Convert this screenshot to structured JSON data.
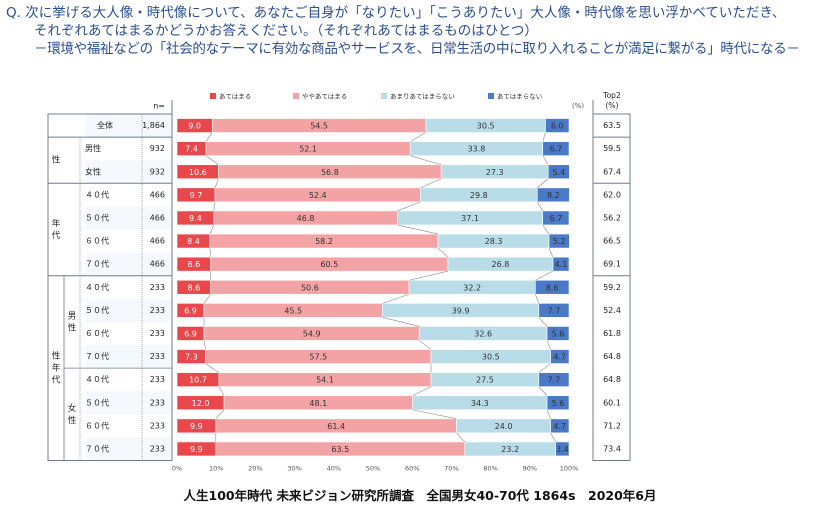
{
  "question": {
    "line1": "Q. 次に挙げる大人像・時代像について、あなたご自身が「なりたい」「こうありたい」大人像・時代像を思い浮かべていただき、",
    "line2": "それぞれあてはまるかどうかお答えください。（それぞれあてはまるものはひとつ）",
    "line3": "－環境や福祉などの「社会的なテーマに有効な商品やサービスを、日常生活の中に取り入れることが満足に繋がる」時代になる－"
  },
  "footer": "人生100年時代 未来ビジョン研究所調査　全国男女40-70代 1864s　2020年6月",
  "colors": {
    "s1": "#e8474c",
    "s2": "#f4a3a5",
    "s3": "#b8dde9",
    "s4": "#4a79c7",
    "frame": "#6e7c8c",
    "rowBand": "#e3ebf5"
  },
  "chart_data": {
    "type": "bar",
    "stacked": true,
    "orientation": "horizontal",
    "n_label": "n=",
    "unit_label": "(%)",
    "top2_label": [
      "Top2",
      "(%)"
    ],
    "group_labels": [
      "性",
      "年代",
      "性年代"
    ],
    "subgroup_labels": [
      "男性",
      "女性"
    ],
    "series": [
      {
        "name": "あてはまる",
        "color": "#e8474c"
      },
      {
        "name": "ややあてはまる",
        "color": "#f4a3a5"
      },
      {
        "name": "あまりあてはまらない",
        "color": "#b8dde9"
      },
      {
        "name": "あてはまらない",
        "color": "#4a79c7"
      }
    ],
    "categories": [
      "全体",
      "男性",
      "女性",
      "４０代",
      "５０代",
      "６０代",
      "７０代",
      "４０代",
      "５０代",
      "６０代",
      "７０代",
      "４０代",
      "５０代",
      "６０代",
      "７０代"
    ],
    "n": [
      "1,864",
      "932",
      "932",
      "466",
      "466",
      "466",
      "466",
      "233",
      "233",
      "233",
      "233",
      "233",
      "233",
      "233",
      "233"
    ],
    "values": [
      [
        9.0,
        54.5,
        30.5,
        6.0
      ],
      [
        7.4,
        52.1,
        33.8,
        6.7
      ],
      [
        10.6,
        56.8,
        27.3,
        5.4
      ],
      [
        9.7,
        52.4,
        29.8,
        8.2
      ],
      [
        9.4,
        46.8,
        37.1,
        6.7
      ],
      [
        8.4,
        58.2,
        28.3,
        5.2
      ],
      [
        8.6,
        60.5,
        26.8,
        4.1
      ],
      [
        8.6,
        50.6,
        32.2,
        8.6
      ],
      [
        6.9,
        45.5,
        39.9,
        7.7
      ],
      [
        6.9,
        54.9,
        32.6,
        5.6
      ],
      [
        7.3,
        57.5,
        30.5,
        4.7
      ],
      [
        10.7,
        54.1,
        27.5,
        7.7
      ],
      [
        12.0,
        48.1,
        34.3,
        5.6
      ],
      [
        9.9,
        61.4,
        24.0,
        4.7
      ],
      [
        9.9,
        63.5,
        23.2,
        3.4
      ]
    ],
    "value_labels": [
      [
        "9.0",
        "54.5",
        "30.5",
        "6.0"
      ],
      [
        "7.4",
        "52.1",
        "33.8",
        "6.7"
      ],
      [
        "10.6",
        "56.8",
        "27.3",
        "5.4"
      ],
      [
        "9.7",
        "52.4",
        "29.8",
        "8.2"
      ],
      [
        "9.4",
        "46.8",
        "37.1",
        "6.7"
      ],
      [
        "8.4",
        "58.2",
        "28.3",
        "5.2"
      ],
      [
        "8.6",
        "60.5",
        "26.8",
        "4.1"
      ],
      [
        "8.6",
        "50.6",
        "32.2",
        "8.6"
      ],
      [
        "6.9",
        "45.5",
        "39.9",
        "7.7"
      ],
      [
        "6.9",
        "54.9",
        "32.6",
        "5.6"
      ],
      [
        "7.3",
        "57.5",
        "30.5",
        "4.7"
      ],
      [
        "10.7",
        "54.1",
        "27.5",
        "7.7"
      ],
      [
        "12.0",
        "48.1",
        "34.3",
        "5.6"
      ],
      [
        "9.9",
        "61.4",
        "24.0",
        "4.7"
      ],
      [
        "9.9",
        "63.5",
        "23.2",
        "3.4"
      ]
    ],
    "top2": [
      "63.5",
      "59.5",
      "67.4",
      "62.0",
      "56.2",
      "66.5",
      "69.1",
      "59.2",
      "52.4",
      "61.8",
      "64.8",
      "64.8",
      "60.1",
      "71.2",
      "73.4"
    ],
    "xlim": [
      0,
      100
    ],
    "xticks": [
      "0%",
      "10%",
      "20%",
      "30%",
      "40%",
      "50%",
      "60%",
      "70%",
      "80%",
      "90%",
      "100%"
    ],
    "legend": "top",
    "grid": false
  }
}
